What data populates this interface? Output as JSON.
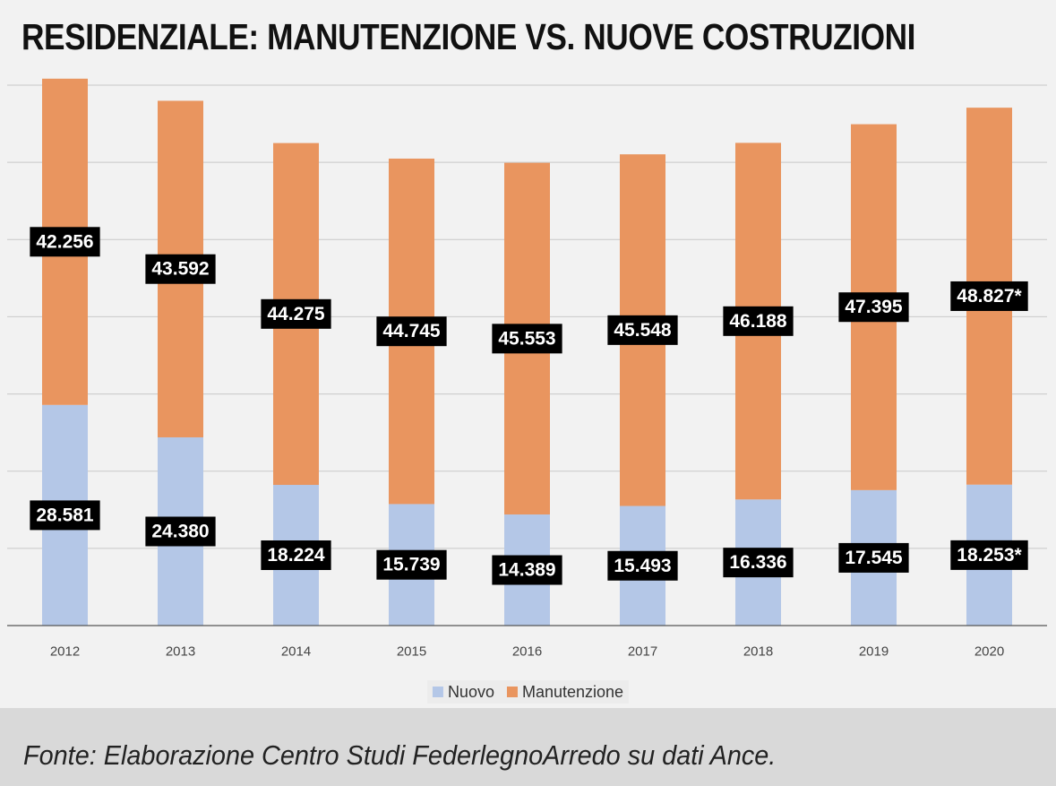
{
  "chart_data": {
    "type": "bar",
    "stacked": true,
    "title": "RESIDENZIALE: MANUTENZIONE VS. NUOVE COSTRUZIONI",
    "categories": [
      "2012",
      "2013",
      "2014",
      "2015",
      "2016",
      "2017",
      "2018",
      "2019",
      "2020"
    ],
    "series": [
      {
        "name": "Nuovo",
        "color": "#b4c7e7",
        "values": [
          28581,
          24380,
          18224,
          15739,
          14389,
          15493,
          16336,
          17545,
          18253
        ],
        "labels": [
          "28.581",
          "24.380",
          "18.224",
          "15.739",
          "14.389",
          "15.493",
          "16.336",
          "17.545",
          "18.253*"
        ]
      },
      {
        "name": "Manutenzione",
        "color": "#e9955f",
        "values": [
          42256,
          43592,
          44275,
          44745,
          45553,
          45548,
          46188,
          47395,
          48827
        ],
        "labels": [
          "42.256",
          "43.592",
          "44.275",
          "44.745",
          "45.553",
          "45.548",
          "46.188",
          "47.395",
          "48.827*"
        ]
      }
    ],
    "ylim": [
      0,
      70000
    ],
    "grid": true,
    "legend": "bottom-center",
    "xlabel": "",
    "ylabel": ""
  },
  "source": "Fonte: Elaborazione Centro Studi FederlegnoArredo su dati Ance.",
  "colors": {
    "label_bg": "#000000",
    "label_text": "#ffffff",
    "grid": "#c8c8c8",
    "axis": "#555555"
  }
}
